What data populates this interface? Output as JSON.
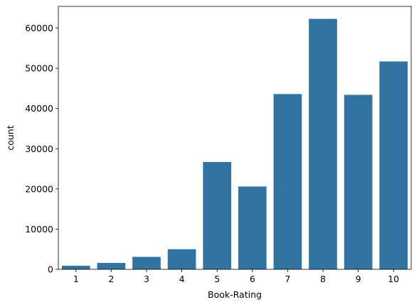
{
  "chart_data": {
    "type": "bar",
    "title": "",
    "xlabel": "Book-Rating",
    "ylabel": "count",
    "categories": [
      "1",
      "2",
      "3",
      "4",
      "5",
      "6",
      "7",
      "8",
      "9",
      "10"
    ],
    "values": [
      900,
      1600,
      3100,
      5000,
      26700,
      20600,
      43600,
      62300,
      43400,
      51700
    ],
    "ylim": [
      0,
      65400
    ],
    "yticks": [
      0,
      10000,
      20000,
      30000,
      40000,
      50000,
      60000
    ],
    "ytick_labels": [
      "0",
      "10000",
      "20000",
      "30000",
      "40000",
      "50000",
      "60000"
    ],
    "grid": false,
    "bar_color": "#3274a1"
  }
}
